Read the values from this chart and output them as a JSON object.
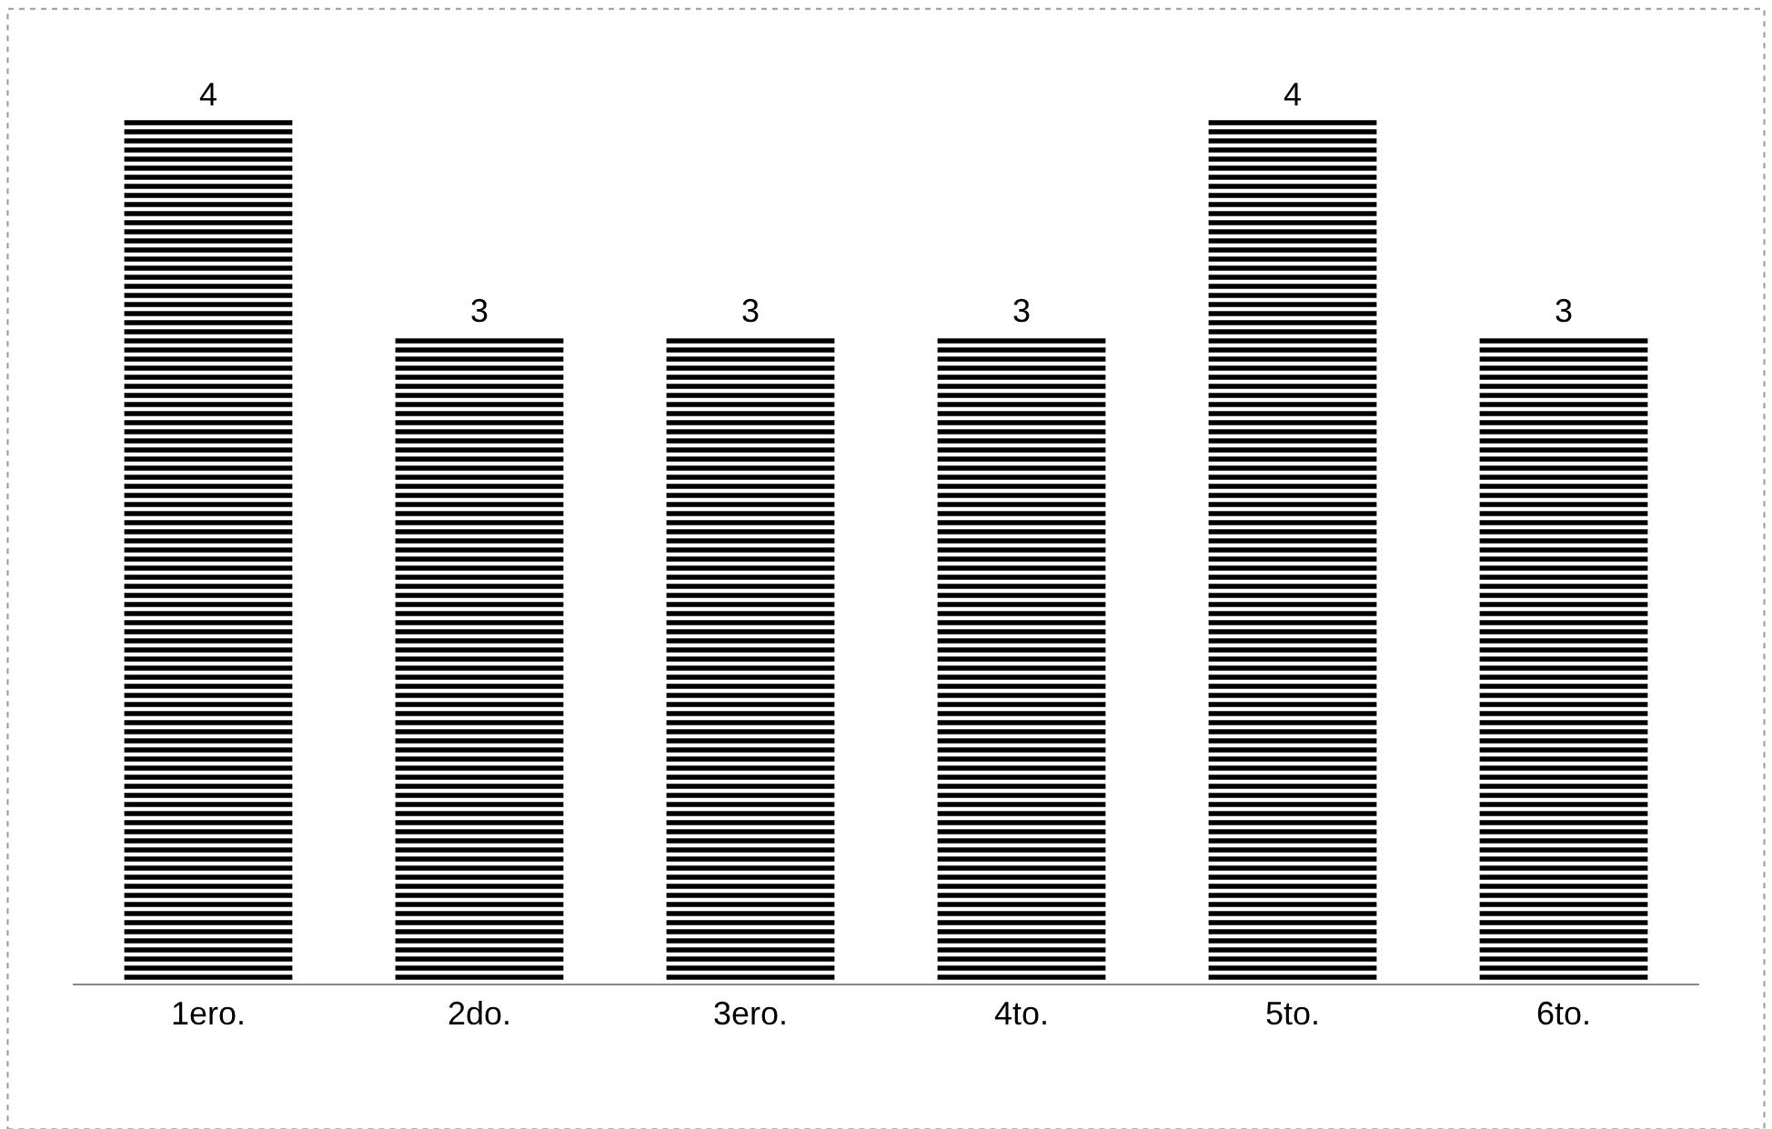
{
  "chart_data": {
    "type": "bar",
    "categories": [
      "1ero.",
      "2do.",
      "3ero.",
      "4to.",
      "5to.",
      "6to."
    ],
    "values": [
      4,
      3,
      3,
      3,
      4,
      3
    ],
    "color": "#000000",
    "data_labels": true,
    "legend": false
  }
}
